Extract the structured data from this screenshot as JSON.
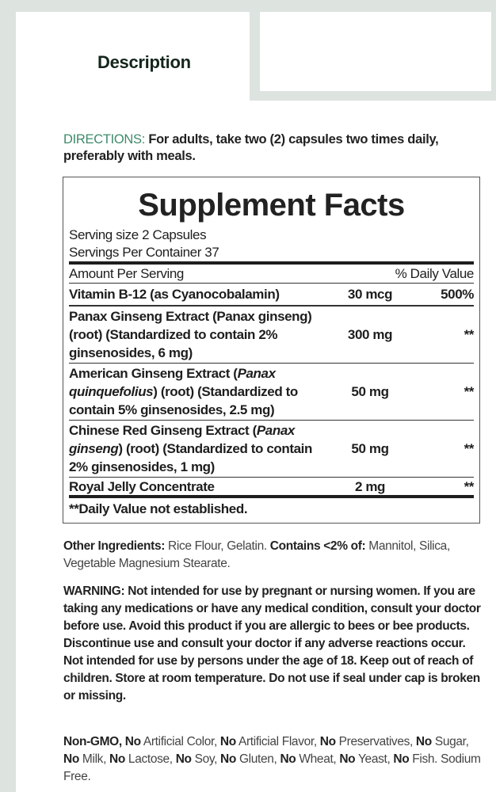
{
  "header": {
    "title": "Description"
  },
  "directions": {
    "label": "DIRECTIONS:",
    "text": " For adults, take two (2) capsules two times daily, preferably with meals."
  },
  "supplement_facts": {
    "title": "Supplement Facts",
    "serving_size": "Serving size 2 Capsules",
    "servings_per_container": "Servings Per Container 37",
    "amount_header": "Amount Per Serving",
    "dv_header": "% Daily Value",
    "rows": [
      {
        "name": "Vitamin B-12 (as Cyanocobalamin)",
        "amount": "30 mcg",
        "dv": "500%"
      },
      {
        "name_parts": [
          "Panax Ginseng Extract (Panax ginseng) (root) (Standardized to contain 2% ginsenosides, 6 mg)"
        ],
        "amount": "300 mg",
        "dv": "**"
      },
      {
        "name_a": "American Ginseng Extract (",
        "name_i": "Panax quinquefolius",
        "name_b": ") (root) (Standardized to contain 5% ginsenosides, 2.5 mg)",
        "amount": "50 mg",
        "dv": "**"
      },
      {
        "name_a": "Chinese Red Ginseng Extract (",
        "name_i": "Panax ginseng",
        "name_b": ") (root) (Standardized to contain 2% ginsenosides, 1 mg)",
        "amount": "50 mg",
        "dv": "**"
      },
      {
        "name": "Royal Jelly Concentrate",
        "amount": "2 mg",
        "dv": "**"
      }
    ],
    "footnote": "**Daily Value not established."
  },
  "other_ingredients": {
    "label": "Other Ingredients:",
    "text1": " Rice Flour, Gelatin. ",
    "label2": "Contains <2% of:",
    "text2": " Mannitol, Silica, Vegetable Magnesium Stearate."
  },
  "warning": "WARNING: Not intended for use by pregnant or nursing women. If you are taking any medications or have any medical condition, consult your doctor before use. Avoid this product if you are allergic to bees or bee products. Discontinue use and consult your doctor if any adverse reactions occur. Not intended for use by persons under the age of 18. Keep out of reach of children. Store at room temperature. Do not use if seal under cap is broken or missing.",
  "free_from": [
    {
      "k": "Non-GMO, No",
      "t": " Artificial Color, "
    },
    {
      "k": "No",
      "t": " Artificial Flavor, "
    },
    {
      "k": "No",
      "t": " Preservatives, "
    },
    {
      "k": "No",
      "t": " Sugar, "
    },
    {
      "k": "No",
      "t": " Milk, "
    },
    {
      "k": "No",
      "t": " Lactose, "
    },
    {
      "k": "No",
      "t": " Soy, "
    },
    {
      "k": "No",
      "t": " Gluten, "
    },
    {
      "k": "No",
      "t": " Wheat, "
    },
    {
      "k": "No",
      "t": " Yeast, "
    },
    {
      "k": "No",
      "t": " Fish. Sodium Free."
    }
  ],
  "colors": {
    "accent": "#3f8a6b",
    "frame": "#dde3df"
  }
}
